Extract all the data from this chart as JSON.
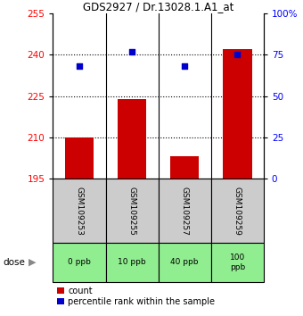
{
  "title": "GDS2927 / Dr.13028.1.A1_at",
  "samples": [
    "GSM109253",
    "GSM109255",
    "GSM109257",
    "GSM109259"
  ],
  "doses": [
    "0 ppb",
    "10 ppb",
    "40 ppb",
    "100\nppb"
  ],
  "bar_bottoms": [
    195,
    195,
    195,
    195
  ],
  "bar_tops": [
    210,
    224,
    203,
    242
  ],
  "percentile_values": [
    236,
    241,
    236,
    240
  ],
  "ylim_left": [
    195,
    255
  ],
  "ylim_right": [
    0,
    100
  ],
  "yticks_left": [
    195,
    210,
    225,
    240,
    255
  ],
  "yticks_right": [
    0,
    25,
    50,
    75,
    100
  ],
  "yticklabels_right": [
    "0",
    "25",
    "50",
    "75",
    "100%"
  ],
  "bar_color": "#cc0000",
  "dot_color": "#0000cc",
  "dose_bg_color": "#90ee90",
  "sample_bg_color": "#cccccc",
  "bar_width": 0.55,
  "legend_count_label": "count",
  "legend_pct_label": "percentile rank within the sample",
  "dose_label": "dose"
}
